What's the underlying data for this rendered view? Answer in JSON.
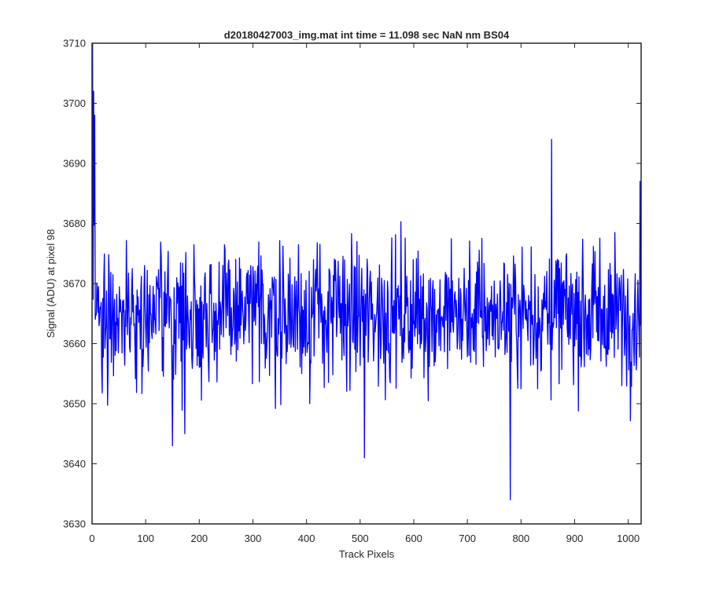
{
  "chart_data": {
    "type": "line",
    "title": "d20180427003_img.mat int time = 11.098 sec  NaN nm BS04",
    "xlabel": "Track Pixels",
    "ylabel": "Signal (ADU) at pixel 98",
    "xlim": [
      0,
      1024
    ],
    "ylim": [
      3630,
      3710
    ],
    "xticks": [
      0,
      100,
      200,
      300,
      400,
      500,
      600,
      700,
      800,
      900,
      1000
    ],
    "yticks": [
      3630,
      3640,
      3650,
      3660,
      3670,
      3680,
      3690,
      3700,
      3710
    ],
    "grid": false,
    "legend": "none",
    "series_color": "#0000ff",
    "series": [
      {
        "x_start": 1,
        "x_step": 1,
        "mean": 3665,
        "noise_amplitude": 9,
        "notable_points": [
          {
            "x": 1,
            "y": 3710
          },
          {
            "x": 3,
            "y": 3702
          },
          {
            "x": 5,
            "y": 3698
          },
          {
            "x": 150,
            "y": 3643
          },
          {
            "x": 173,
            "y": 3645
          },
          {
            "x": 508,
            "y": 3641
          },
          {
            "x": 780,
            "y": 3634
          },
          {
            "x": 857,
            "y": 3694
          },
          {
            "x": 1022,
            "y": 3687
          }
        ]
      }
    ]
  }
}
